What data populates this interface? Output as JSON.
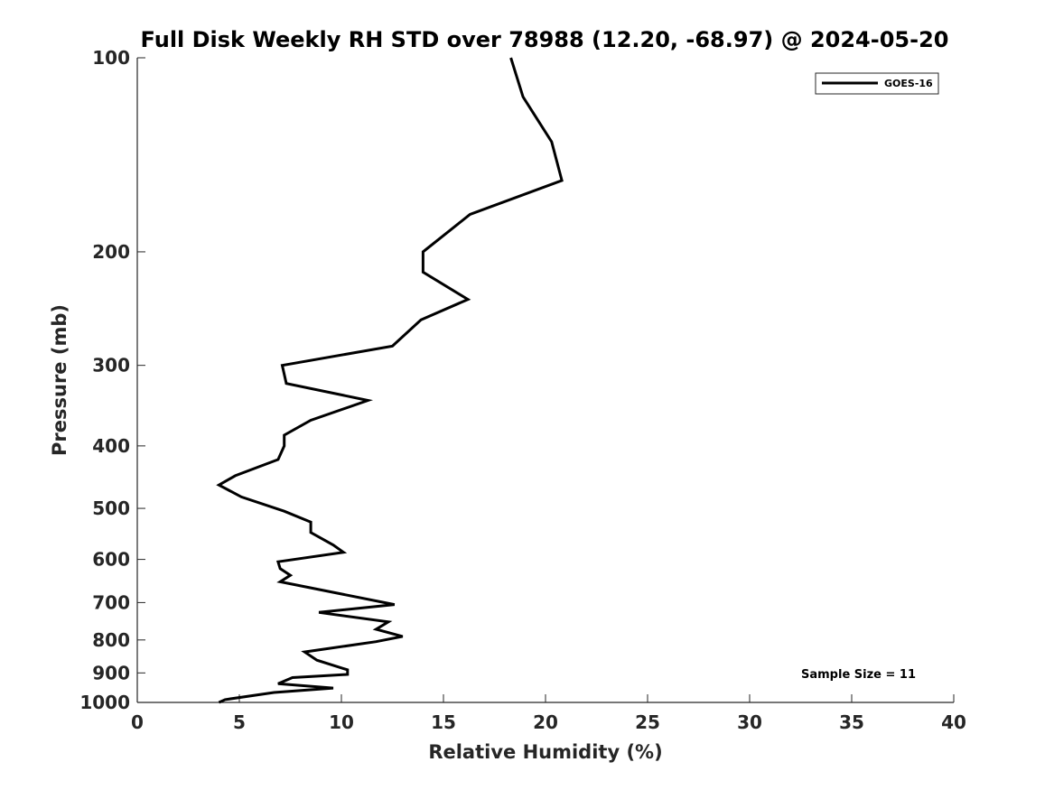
{
  "chart_data": {
    "type": "line",
    "title": "Full Disk Weekly RH STD over 78988 (12.20, -68.97) @ 2024-05-20",
    "xlabel": "Relative Humidity (%)",
    "ylabel": "Pressure (mb)",
    "xlim": [
      0,
      40
    ],
    "ylim": [
      100,
      1000
    ],
    "y_scale": "log",
    "y_reversed": true,
    "grid": false,
    "legend_position": "top-right",
    "x_ticks": [
      "0",
      "5",
      "10",
      "15",
      "20",
      "25",
      "30",
      "35",
      "40"
    ],
    "x_tick_values": [
      0,
      5,
      10,
      15,
      20,
      25,
      30,
      35,
      40
    ],
    "y_ticks": [
      "100",
      "200",
      "300",
      "400",
      "500",
      "600",
      "700",
      "800",
      "900",
      "1000"
    ],
    "y_tick_values": [
      100,
      200,
      300,
      400,
      500,
      600,
      700,
      800,
      900,
      1000
    ],
    "series": [
      {
        "name": "GOES-16",
        "color": "#000000",
        "points": [
          [
            18.3,
            100
          ],
          [
            18.9,
            115
          ],
          [
            20.3,
            135
          ],
          [
            20.8,
            155
          ],
          [
            16.3,
            175
          ],
          [
            14.0,
            200
          ],
          [
            14.0,
            215
          ],
          [
            16.2,
            237
          ],
          [
            13.9,
            255
          ],
          [
            12.5,
            280
          ],
          [
            7.1,
            300
          ],
          [
            7.3,
            320
          ],
          [
            11.3,
            340
          ],
          [
            8.5,
            365
          ],
          [
            7.2,
            385
          ],
          [
            7.2,
            400
          ],
          [
            6.9,
            420
          ],
          [
            4.8,
            445
          ],
          [
            4.0,
            460
          ],
          [
            5.1,
            480
          ],
          [
            7.2,
            505
          ],
          [
            8.5,
            525
          ],
          [
            8.5,
            545
          ],
          [
            9.6,
            570
          ],
          [
            10.1,
            585
          ],
          [
            6.9,
            605
          ],
          [
            7.0,
            620
          ],
          [
            7.5,
            635
          ],
          [
            7.0,
            650
          ],
          [
            12.6,
            705
          ],
          [
            8.9,
            725
          ],
          [
            12.3,
            750
          ],
          [
            11.7,
            770
          ],
          [
            13.0,
            790
          ],
          [
            11.7,
            805
          ],
          [
            8.2,
            835
          ],
          [
            8.8,
            860
          ],
          [
            10.3,
            890
          ],
          [
            10.3,
            905
          ],
          [
            7.6,
            915
          ],
          [
            6.9,
            935
          ],
          [
            9.6,
            950
          ],
          [
            6.7,
            965
          ],
          [
            4.3,
            990
          ],
          [
            4.0,
            1000
          ]
        ]
      }
    ],
    "annotations": [
      "Sample Size = 11"
    ]
  }
}
